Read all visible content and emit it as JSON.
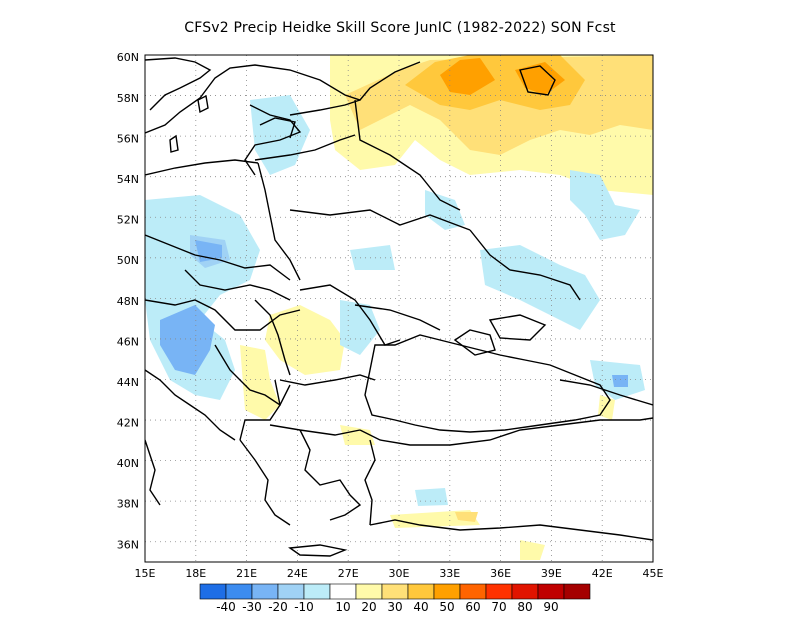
{
  "title": "CFSv2 Precip Heidke Skill Score JunIC (1982-2022) SON Fcst",
  "map": {
    "lon_range": [
      15,
      45
    ],
    "lat_range": [
      35,
      60
    ],
    "x_ticks": [
      "15E",
      "18E",
      "21E",
      "24E",
      "27E",
      "30E",
      "33E",
      "36E",
      "39E",
      "42E",
      "45E"
    ],
    "y_ticks": [
      "36N",
      "38N",
      "40N",
      "42N",
      "44N",
      "46N",
      "48N",
      "50N",
      "52N",
      "54N",
      "56N",
      "58N",
      "60N"
    ]
  },
  "colorbar": {
    "labels": [
      "-40",
      "-30",
      "-20",
      "-10",
      "10",
      "20",
      "30",
      "40",
      "50",
      "60",
      "70",
      "80",
      "90"
    ],
    "colors": [
      "#1e6ee6",
      "#3c8cf0",
      "#78b4f5",
      "#a0d2f5",
      "#bcecf8",
      "#ffffff",
      "#fffaaa",
      "#ffe078",
      "#ffc83c",
      "#ffa000",
      "#ff6400",
      "#ff3200",
      "#e11400",
      "#c00000",
      "#a50000"
    ]
  },
  "chart_data": {
    "type": "heatmap",
    "title": "CFSv2 Precip Heidke Skill Score JunIC (1982-2022) SON Fcst",
    "x_range": [
      15,
      45
    ],
    "y_range": [
      35,
      60
    ],
    "regions": [
      {
        "level": "20-30",
        "lon": [
          30,
          33
        ],
        "lat": [
          56,
          60
        ]
      },
      {
        "level": "30-40",
        "lon": [
          32.5,
          40
        ],
        "lat": [
          57.5,
          60
        ]
      },
      {
        "level": "10-20",
        "lon": [
          26,
          45
        ],
        "lat": [
          53.5,
          60
        ]
      },
      {
        "level": "-10--20",
        "lon": [
          17,
          22
        ],
        "lat": [
          45,
          49
        ]
      },
      {
        "level": "-20--30",
        "lon": [
          18,
          20
        ],
        "lat": [
          49.5,
          50.5
        ]
      },
      {
        "level": "-20--30",
        "lon": [
          16.5,
          19
        ],
        "lat": [
          45,
          47
        ]
      },
      {
        "level": "10-20",
        "lon": [
          21,
          27
        ],
        "lat": [
          42,
          46.5
        ]
      },
      {
        "level": "-10--20",
        "lon": [
          37,
          41
        ],
        "lat": [
          51,
          54
        ]
      },
      {
        "level": "-20--30",
        "lon": [
          41.5,
          42.5
        ],
        "lat": [
          43.5,
          44.5
        ]
      }
    ]
  }
}
